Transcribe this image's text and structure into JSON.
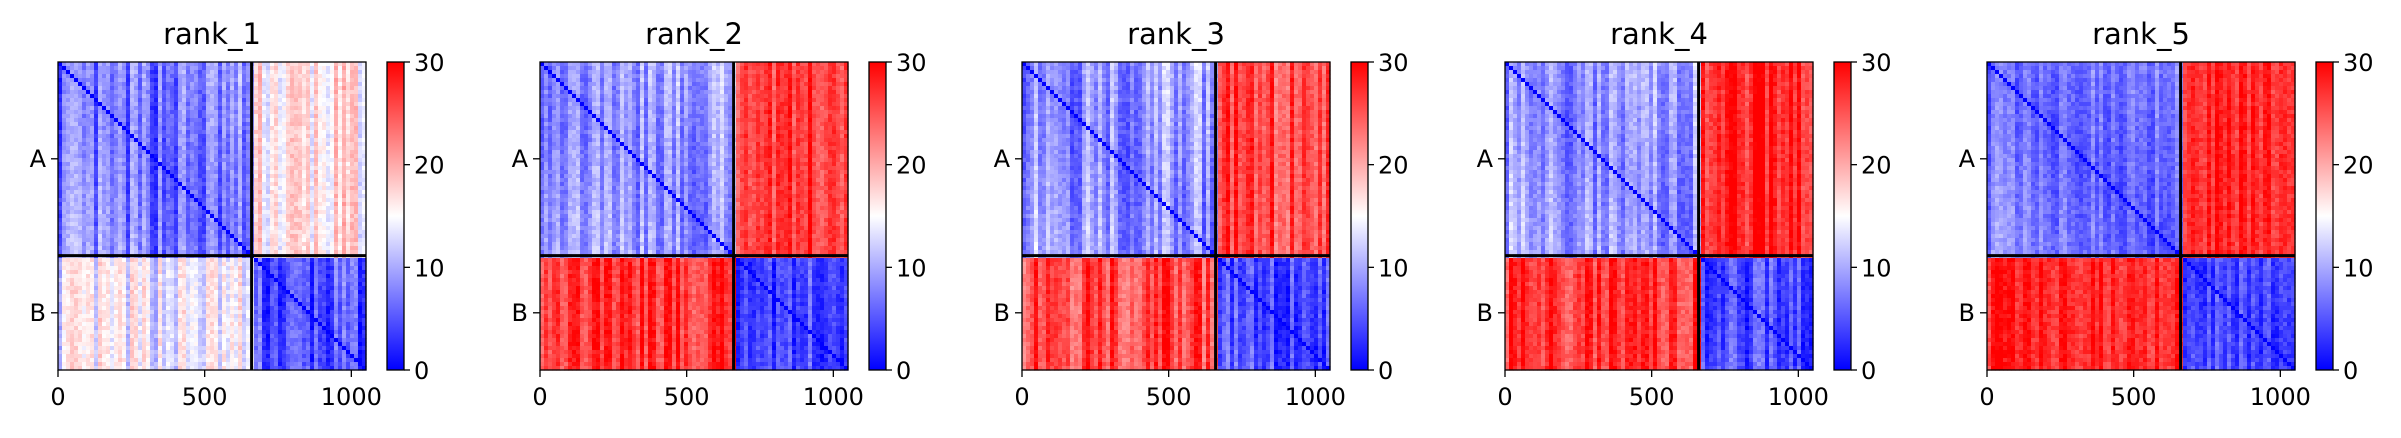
{
  "chart_data": [
    {
      "type": "heatmap",
      "title": "rank_1",
      "chains": [
        {
          "label": "A",
          "start": 0,
          "end": 660
        },
        {
          "label": "B",
          "start": 660,
          "end": 1050
        }
      ],
      "x_ticks": [
        0,
        500,
        1000
      ],
      "colorbar": {
        "min": 0,
        "max": 30,
        "ticks": [
          0,
          10,
          20,
          30
        ]
      },
      "blocks": {
        "AA": 6,
        "BB": 4,
        "AB": 16,
        "BA": 14
      },
      "stripe_variance": 5
    },
    {
      "type": "heatmap",
      "title": "rank_2",
      "chains": [
        {
          "label": "A",
          "start": 0,
          "end": 660
        },
        {
          "label": "B",
          "start": 660,
          "end": 1050
        }
      ],
      "x_ticks": [
        0,
        500,
        1000
      ],
      "colorbar": {
        "min": 0,
        "max": 30,
        "ticks": [
          0,
          10,
          20,
          30
        ]
      },
      "blocks": {
        "AA": 8,
        "BB": 4,
        "AB": 27,
        "BA": 27
      },
      "stripe_variance": 4
    },
    {
      "type": "heatmap",
      "title": "rank_3",
      "chains": [
        {
          "label": "A",
          "start": 0,
          "end": 660
        },
        {
          "label": "B",
          "start": 660,
          "end": 1050
        }
      ],
      "x_ticks": [
        0,
        500,
        1000
      ],
      "colorbar": {
        "min": 0,
        "max": 30,
        "ticks": [
          0,
          10,
          20,
          30
        ]
      },
      "blocks": {
        "AA": 8,
        "BB": 4,
        "AB": 26,
        "BA": 26
      },
      "stripe_variance": 5
    },
    {
      "type": "heatmap",
      "title": "rank_4",
      "chains": [
        {
          "label": "A",
          "start": 0,
          "end": 660
        },
        {
          "label": "B",
          "start": 660,
          "end": 1050
        }
      ],
      "x_ticks": [
        0,
        500,
        1000
      ],
      "colorbar": {
        "min": 0,
        "max": 30,
        "ticks": [
          0,
          10,
          20,
          30
        ]
      },
      "blocks": {
        "AA": 8,
        "BB": 4,
        "AB": 28,
        "BA": 27
      },
      "stripe_variance": 4
    },
    {
      "type": "heatmap",
      "title": "rank_5",
      "chains": [
        {
          "label": "A",
          "start": 0,
          "end": 660
        },
        {
          "label": "B",
          "start": 660,
          "end": 1050
        }
      ],
      "x_ticks": [
        0,
        500,
        1000
      ],
      "colorbar": {
        "min": 0,
        "max": 30,
        "ticks": [
          0,
          10,
          20,
          30
        ]
      },
      "blocks": {
        "AA": 6,
        "BB": 4,
        "AB": 28,
        "BA": 28
      },
      "stripe_variance": 3
    }
  ]
}
